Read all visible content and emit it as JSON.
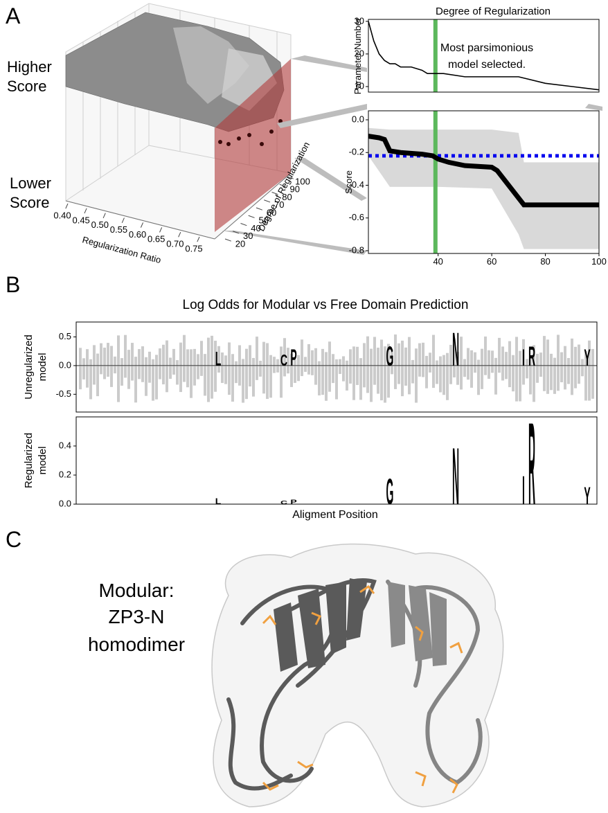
{
  "panels": {
    "a": "A",
    "b": "B",
    "c": "C"
  },
  "panel_a": {
    "surface": {
      "type": "surface3d",
      "high_label": [
        "Higher",
        "Score"
      ],
      "low_label": [
        "Lower",
        "Score"
      ],
      "xlabel": "Regularization Ratio",
      "xticks": [
        {
          "value": 0.4,
          "label": "0.40"
        },
        0.45,
        {
          "value": 0.5,
          "label": "0.50"
        },
        0.55,
        {
          "value": 0.6,
          "label": "0.60"
        },
        0.65,
        {
          "value": 0.7,
          "label": "0.70"
        },
        0.75
      ],
      "ylabel": "Degree of Regularization",
      "yticks": [
        20,
        30,
        40,
        50,
        60,
        70,
        80,
        90,
        100
      ]
    },
    "parameter_chart": {
      "type": "line",
      "title": "Degree of Regularization",
      "ylabel": "Parameter Number",
      "xlim": [
        14,
        100
      ],
      "ylim": [
        8.3,
        30.6
      ],
      "yticks": [
        10,
        20,
        30
      ],
      "x": [
        14,
        16,
        18,
        20,
        22,
        24,
        26,
        30,
        34,
        36,
        42,
        50,
        70,
        80,
        90,
        100
      ],
      "values": [
        30,
        24,
        20,
        18,
        17,
        17,
        16,
        16,
        15,
        14,
        14,
        13,
        13,
        11,
        10,
        9
      ],
      "color": "#000000",
      "selected_x": 39,
      "selected_color": "#5cb85c",
      "annotation": [
        "Most parsimonious",
        "model selected."
      ]
    },
    "score_chart": {
      "type": "line",
      "ylabel": "Score",
      "xlim": [
        14,
        100
      ],
      "ylim": [
        -0.817,
        0.055
      ],
      "xticks": [
        40,
        60,
        80,
        100
      ],
      "yticks": [
        {
          "value": 0,
          "label": "0.0"
        },
        -0.2,
        -0.4,
        -0.6,
        -0.8
      ],
      "x": [
        14,
        18,
        20,
        22,
        26,
        34,
        38,
        40,
        44,
        50,
        60,
        62,
        72,
        100
      ],
      "values": [
        -0.1,
        -0.11,
        -0.12,
        -0.19,
        -0.2,
        -0.21,
        -0.22,
        -0.24,
        -0.26,
        -0.28,
        -0.29,
        -0.31,
        -0.52,
        -0.52
      ],
      "color": "#000000",
      "band_x": [
        14,
        22,
        40,
        60,
        70,
        72,
        100
      ],
      "band_upper": [
        -0.05,
        -0.06,
        -0.06,
        -0.06,
        -0.08,
        -0.26,
        -0.26
      ],
      "band_lower": [
        -0.22,
        -0.41,
        -0.41,
        -0.42,
        -0.7,
        -0.79,
        -0.79
      ],
      "band_color": "#d9d9d9",
      "reference": -0.22,
      "reference_color": "#0000ee",
      "selected_x": 39,
      "selected_color": "#5cb85c"
    }
  },
  "panel_b": {
    "title": "Log Odds for Modular vs Free Domain Prediction",
    "xlabel": "Aligment Position",
    "letters": [
      "L",
      "C",
      "P",
      "G",
      "N",
      "I",
      "R",
      "Y"
    ],
    "letter_color": "#f39a2b",
    "unregularized": {
      "ylabel": [
        "Unregularized",
        "model"
      ],
      "ylim": [
        -0.81,
        0.76
      ],
      "yticks": [
        0.5,
        {
          "value": 0,
          "label": "0.0"
        },
        -0.5
      ],
      "values": [
        0.25,
        0.2,
        0.3,
        0.35,
        0.6,
        0.3,
        0.35,
        0.3
      ]
    },
    "regularized": {
      "ylabel": [
        "Regularized",
        "model"
      ],
      "ylim": [
        0,
        0.6
      ],
      "yticks": [
        {
          "value": 0,
          "label": "0.0"
        },
        0.2,
        0.4
      ],
      "values": [
        0.04,
        0.025,
        0.03,
        0.18,
        0.4,
        0.2,
        0.58,
        0.12
      ]
    }
  },
  "panel_c": {
    "label": [
      "Modular:",
      "ZP3-N",
      "homodimer"
    ]
  }
}
